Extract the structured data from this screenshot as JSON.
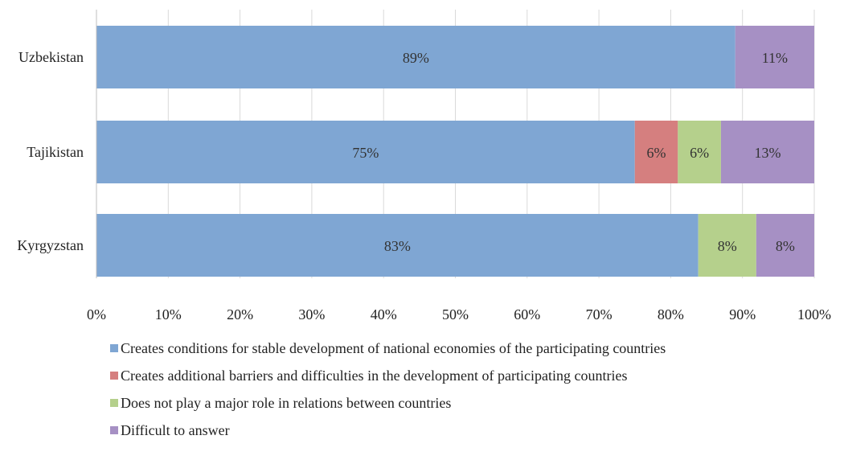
{
  "chart_data": {
    "type": "bar",
    "orientation": "horizontal",
    "stacked": true,
    "percent_stacked": true,
    "categories": [
      "Uzbekistan",
      "Tajikistan",
      "Kyrgyzstan"
    ],
    "series": [
      {
        "name": "Creates conditions for stable development of national economies of the participating countries",
        "color": "#7FA6D3",
        "values": [
          89,
          75,
          83
        ],
        "labels": [
          "89%",
          "75%",
          "83%"
        ]
      },
      {
        "name": "Creates additional barriers and difficulties in the development of participating countries",
        "color": "#D57F7F",
        "values": [
          0,
          6,
          0
        ],
        "labels": [
          "",
          "6%",
          ""
        ]
      },
      {
        "name": "Does not play a major role in relations between countries",
        "color": "#B5D08C",
        "values": [
          0,
          6,
          8
        ],
        "labels": [
          "",
          "6%",
          "8%"
        ]
      },
      {
        "name": "Difficult to answer",
        "color": "#A690C4",
        "values": [
          11,
          13,
          8
        ],
        "labels": [
          "11%",
          "13%",
          "8%"
        ]
      }
    ],
    "xlim": [
      0,
      100
    ],
    "x_ticks": [
      "0%",
      "10%",
      "20%",
      "30%",
      "40%",
      "50%",
      "60%",
      "70%",
      "80%",
      "90%",
      "100%"
    ],
    "grid": true,
    "legend_position": "bottom"
  }
}
